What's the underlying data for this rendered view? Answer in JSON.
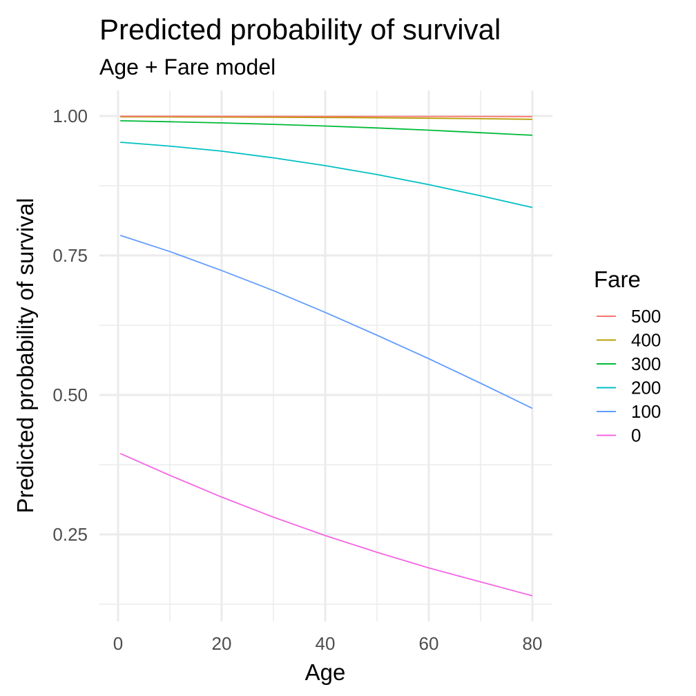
{
  "chart_data": {
    "type": "line",
    "title": "Predicted probability of survival",
    "subtitle": "Age + Fare model",
    "xlabel": "Age",
    "ylabel": "Predicted probability of survival",
    "xlim": [
      0.42,
      80
    ],
    "ylim": [
      0.13,
      1.0
    ],
    "x_ticks": [
      0,
      20,
      40,
      60,
      80
    ],
    "x_tick_labels": [
      "0",
      "20",
      "40",
      "60",
      "80"
    ],
    "y_ticks": [
      0.25,
      0.5,
      0.75,
      1.0
    ],
    "y_tick_labels": [
      "0.25",
      "0.50",
      "0.75",
      "1.00"
    ],
    "grid": true,
    "legend": {
      "title": "Fare",
      "position": "right"
    },
    "x": [
      0.42,
      10,
      20,
      30,
      40,
      50,
      60,
      70,
      80
    ],
    "series": [
      {
        "name": "500",
        "color": "#F8766D",
        "values": [
          0.9995,
          0.9995,
          0.9994,
          0.9994,
          0.9993,
          0.9992,
          0.9992,
          0.9991,
          0.999
        ]
      },
      {
        "name": "400",
        "color": "#B79F00",
        "values": [
          0.9985,
          0.9983,
          0.998,
          0.9977,
          0.9973,
          0.9968,
          0.9961,
          0.9952,
          0.9941
        ]
      },
      {
        "name": "300",
        "color": "#00BA38",
        "values": [
          0.9915,
          0.9897,
          0.9876,
          0.985,
          0.982,
          0.9786,
          0.9746,
          0.97,
          0.9655
        ]
      },
      {
        "name": "200",
        "color": "#00BFC4",
        "values": [
          0.953,
          0.946,
          0.937,
          0.925,
          0.911,
          0.895,
          0.877,
          0.857,
          0.836
        ]
      },
      {
        "name": "100",
        "color": "#619CFF",
        "values": [
          0.786,
          0.757,
          0.723,
          0.687,
          0.648,
          0.607,
          0.565,
          0.521,
          0.476
        ]
      },
      {
        "name": "0",
        "color": "#F564E3",
        "values": [
          0.395,
          0.356,
          0.317,
          0.281,
          0.248,
          0.218,
          0.19,
          0.165,
          0.14
        ]
      }
    ]
  }
}
